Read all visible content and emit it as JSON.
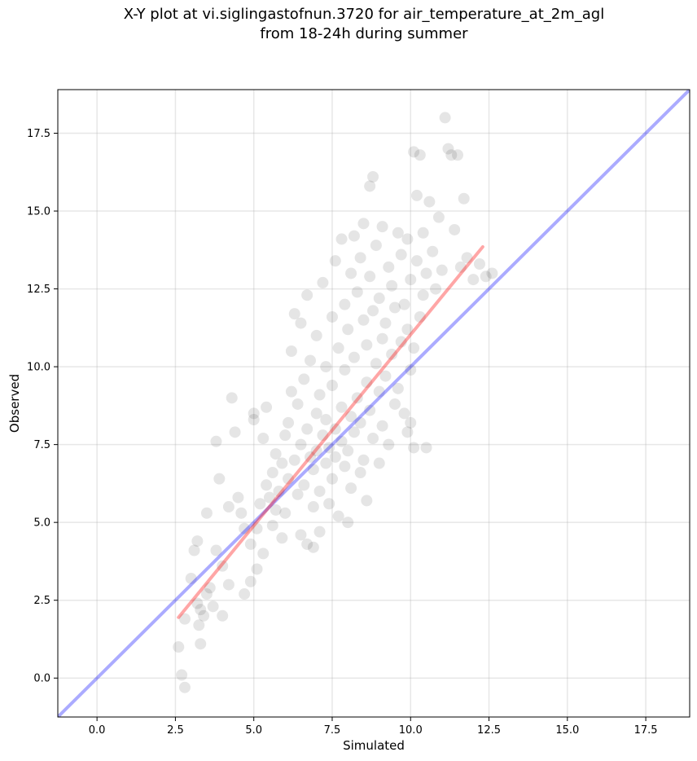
{
  "chart_data": {
    "type": "scatter",
    "title": "X-Y plot at vi.siglingastofnun.3720 for air_temperature_at_2m_agl",
    "subtitle": "from 18-24h during summer",
    "xlabel": "Simulated",
    "ylabel": "Observed",
    "xlim": [
      -1.25,
      18.9
    ],
    "ylim": [
      -1.25,
      18.9
    ],
    "xticks": [
      0,
      2.5,
      5,
      7.5,
      10,
      12.5,
      15,
      17.5
    ],
    "yticks": [
      0,
      2.5,
      5,
      7.5,
      10,
      12.5,
      15,
      17.5
    ],
    "xtick_labels": [
      "0.0",
      "2.5",
      "5.0",
      "7.5",
      "10.0",
      "12.5",
      "15.0",
      "17.5"
    ],
    "ytick_labels": [
      "0.0",
      "2.5",
      "5.0",
      "7.5",
      "10.0",
      "12.5",
      "15.0",
      "17.5"
    ],
    "grid": true,
    "point_color": "#000000",
    "point_alpha": 0.1,
    "reference_line": {
      "x": [
        -1.25,
        18.9
      ],
      "y": [
        -1.25,
        18.9
      ],
      "color": "#0000ff",
      "alpha": 0.33
    },
    "fit_line": {
      "x": [
        2.6,
        12.3
      ],
      "y": [
        1.95,
        13.85
      ],
      "color": "#ff0000",
      "alpha": 0.35
    },
    "points": [
      [
        2.6,
        1.0
      ],
      [
        2.7,
        0.1
      ],
      [
        2.8,
        -0.3
      ],
      [
        2.8,
        1.9
      ],
      [
        3.0,
        3.2
      ],
      [
        3.1,
        4.1
      ],
      [
        3.2,
        2.4
      ],
      [
        3.2,
        4.4
      ],
      [
        3.25,
        1.7
      ],
      [
        3.3,
        1.1
      ],
      [
        3.3,
        2.2
      ],
      [
        3.4,
        2.0
      ],
      [
        3.5,
        2.7
      ],
      [
        3.5,
        5.3
      ],
      [
        3.6,
        2.9
      ],
      [
        3.7,
        2.3
      ],
      [
        3.8,
        4.1
      ],
      [
        3.8,
        7.6
      ],
      [
        3.9,
        6.4
      ],
      [
        4.0,
        2.0
      ],
      [
        4.2,
        3.0
      ],
      [
        4.2,
        5.5
      ],
      [
        4.3,
        9.0
      ],
      [
        4.4,
        7.9
      ],
      [
        4.5,
        5.8
      ],
      [
        4.6,
        5.3
      ],
      [
        4.7,
        4.8
      ],
      [
        4.7,
        2.7
      ],
      [
        4.9,
        3.1
      ],
      [
        4.9,
        4.3
      ],
      [
        5.0,
        8.3
      ],
      [
        5.0,
        8.5
      ],
      [
        5.1,
        3.5
      ],
      [
        5.1,
        4.8
      ],
      [
        5.2,
        5.6
      ],
      [
        5.3,
        7.7
      ],
      [
        5.4,
        8.7
      ],
      [
        5.4,
        6.2
      ],
      [
        5.5,
        5.8
      ],
      [
        5.6,
        4.9
      ],
      [
        5.6,
        6.6
      ],
      [
        5.7,
        5.4
      ],
      [
        5.7,
        7.2
      ],
      [
        5.8,
        6.0
      ],
      [
        5.9,
        4.5
      ],
      [
        5.9,
        6.9
      ],
      [
        6.0,
        7.8
      ],
      [
        6.0,
        5.3
      ],
      [
        6.1,
        8.2
      ],
      [
        6.1,
        6.4
      ],
      [
        6.2,
        9.2
      ],
      [
        6.2,
        10.5
      ],
      [
        6.3,
        11.7
      ],
      [
        6.3,
        7.0
      ],
      [
        6.4,
        5.9
      ],
      [
        6.4,
        8.8
      ],
      [
        6.5,
        7.5
      ],
      [
        6.5,
        11.4
      ],
      [
        6.6,
        6.2
      ],
      [
        6.6,
        9.6
      ],
      [
        6.7,
        4.3
      ],
      [
        6.7,
        12.3
      ],
      [
        6.7,
        8.0
      ],
      [
        6.8,
        7.1
      ],
      [
        6.8,
        10.2
      ],
      [
        6.9,
        6.7
      ],
      [
        6.9,
        5.5
      ],
      [
        7.0,
        8.5
      ],
      [
        7.0,
        11.0
      ],
      [
        7.0,
        7.3
      ],
      [
        7.1,
        9.1
      ],
      [
        7.1,
        4.7
      ],
      [
        7.1,
        6.0
      ],
      [
        7.2,
        7.8
      ],
      [
        7.2,
        12.7
      ],
      [
        7.3,
        6.9
      ],
      [
        7.3,
        10.0
      ],
      [
        7.3,
        8.3
      ],
      [
        7.4,
        7.4
      ],
      [
        7.4,
        5.6
      ],
      [
        7.5,
        11.6
      ],
      [
        7.5,
        9.4
      ],
      [
        7.5,
        6.4
      ],
      [
        7.6,
        13.4
      ],
      [
        7.6,
        8.0
      ],
      [
        7.6,
        7.1
      ],
      [
        7.7,
        10.6
      ],
      [
        7.7,
        5.2
      ],
      [
        7.8,
        14.1
      ],
      [
        7.8,
        8.7
      ],
      [
        7.8,
        7.6
      ],
      [
        7.9,
        12.0
      ],
      [
        7.9,
        6.8
      ],
      [
        7.9,
        9.9
      ],
      [
        8.0,
        11.2
      ],
      [
        8.0,
        7.3
      ],
      [
        8.0,
        5.0
      ],
      [
        8.1,
        13.0
      ],
      [
        8.1,
        8.4
      ],
      [
        8.1,
        6.1
      ],
      [
        8.2,
        14.2
      ],
      [
        8.2,
        10.3
      ],
      [
        8.2,
        7.9
      ],
      [
        8.3,
        12.4
      ],
      [
        8.3,
        9.0
      ],
      [
        8.4,
        13.5
      ],
      [
        8.4,
        6.6
      ],
      [
        8.4,
        8.2
      ],
      [
        8.5,
        14.6
      ],
      [
        8.5,
        11.5
      ],
      [
        8.5,
        7.0
      ],
      [
        8.6,
        10.7
      ],
      [
        8.6,
        5.7
      ],
      [
        8.6,
        9.5
      ],
      [
        8.7,
        15.8
      ],
      [
        8.7,
        12.9
      ],
      [
        8.7,
        8.6
      ],
      [
        8.8,
        16.1
      ],
      [
        8.8,
        11.8
      ],
      [
        8.8,
        7.7
      ],
      [
        8.9,
        10.1
      ],
      [
        8.9,
        13.9
      ],
      [
        9.0,
        9.2
      ],
      [
        9.0,
        12.2
      ],
      [
        9.0,
        6.9
      ],
      [
        9.1,
        14.5
      ],
      [
        9.1,
        10.9
      ],
      [
        9.1,
        8.1
      ],
      [
        9.2,
        11.4
      ],
      [
        9.2,
        9.7
      ],
      [
        9.3,
        13.2
      ],
      [
        9.3,
        7.5
      ],
      [
        9.4,
        12.6
      ],
      [
        9.4,
        10.4
      ],
      [
        9.5,
        8.8
      ],
      [
        9.5,
        11.9
      ],
      [
        9.6,
        14.3
      ],
      [
        9.6,
        9.3
      ],
      [
        9.7,
        13.6
      ],
      [
        9.7,
        10.8
      ],
      [
        9.8,
        12.0
      ],
      [
        9.8,
        8.5
      ],
      [
        9.9,
        14.1
      ],
      [
        9.9,
        11.2
      ],
      [
        10.0,
        9.9
      ],
      [
        10.0,
        12.8
      ],
      [
        10.1,
        16.9
      ],
      [
        10.1,
        10.6
      ],
      [
        10.2,
        15.5
      ],
      [
        10.2,
        13.4
      ],
      [
        10.3,
        11.6
      ],
      [
        10.3,
        16.8
      ],
      [
        10.4,
        14.3
      ],
      [
        10.4,
        12.3
      ],
      [
        10.5,
        7.4
      ],
      [
        10.5,
        13.0
      ],
      [
        10.6,
        15.3
      ],
      [
        10.7,
        13.7
      ],
      [
        10.8,
        12.5
      ],
      [
        10.9,
        14.8
      ],
      [
        11.0,
        13.1
      ],
      [
        11.1,
        18.0
      ],
      [
        11.2,
        17.0
      ],
      [
        11.3,
        16.8
      ],
      [
        11.4,
        14.4
      ],
      [
        11.5,
        16.8
      ],
      [
        11.6,
        13.2
      ],
      [
        11.7,
        15.4
      ],
      [
        11.8,
        13.5
      ],
      [
        12.0,
        12.8
      ],
      [
        12.2,
        13.3
      ],
      [
        12.4,
        12.9
      ],
      [
        12.6,
        13.0
      ],
      [
        10.1,
        7.4
      ],
      [
        10.0,
        8.2
      ],
      [
        9.9,
        7.9
      ],
      [
        6.9,
        4.2
      ],
      [
        6.5,
        4.6
      ],
      [
        5.3,
        4.0
      ],
      [
        4.0,
        3.6
      ]
    ]
  }
}
